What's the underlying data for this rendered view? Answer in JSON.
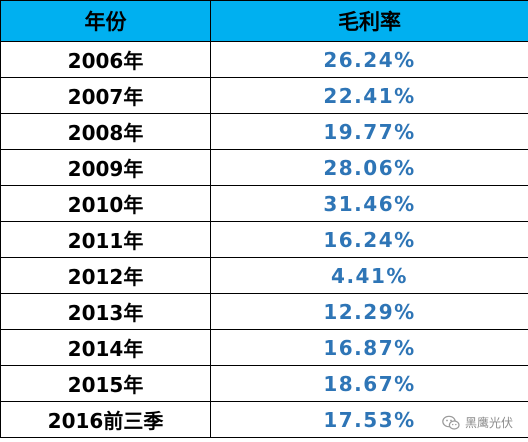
{
  "table": {
    "header": {
      "year": "年份",
      "margin": "毛利率"
    },
    "rows": [
      {
        "year": "2006年",
        "margin": "26.24%"
      },
      {
        "year": "2007年",
        "margin": "22.41%"
      },
      {
        "year": "2008年",
        "margin": "19.77%"
      },
      {
        "year": "2009年",
        "margin": "28.06%"
      },
      {
        "year": "2010年",
        "margin": "31.46%"
      },
      {
        "year": "2011年",
        "margin": "16.24%"
      },
      {
        "year": "2012年",
        "margin": "4.41%"
      },
      {
        "year": "2013年",
        "margin": "12.29%"
      },
      {
        "year": "2014年",
        "margin": "16.87%"
      },
      {
        "year": "2015年",
        "margin": "18.67%"
      },
      {
        "year": "2016前三季",
        "margin": "17.53%"
      }
    ]
  },
  "watermark": {
    "text": "黑鹰光伏",
    "icon": "wechat-icon"
  },
  "colors": {
    "header_bg": "#00b0f0",
    "value_text": "#2e75b6",
    "grid_line": "#000000"
  }
}
